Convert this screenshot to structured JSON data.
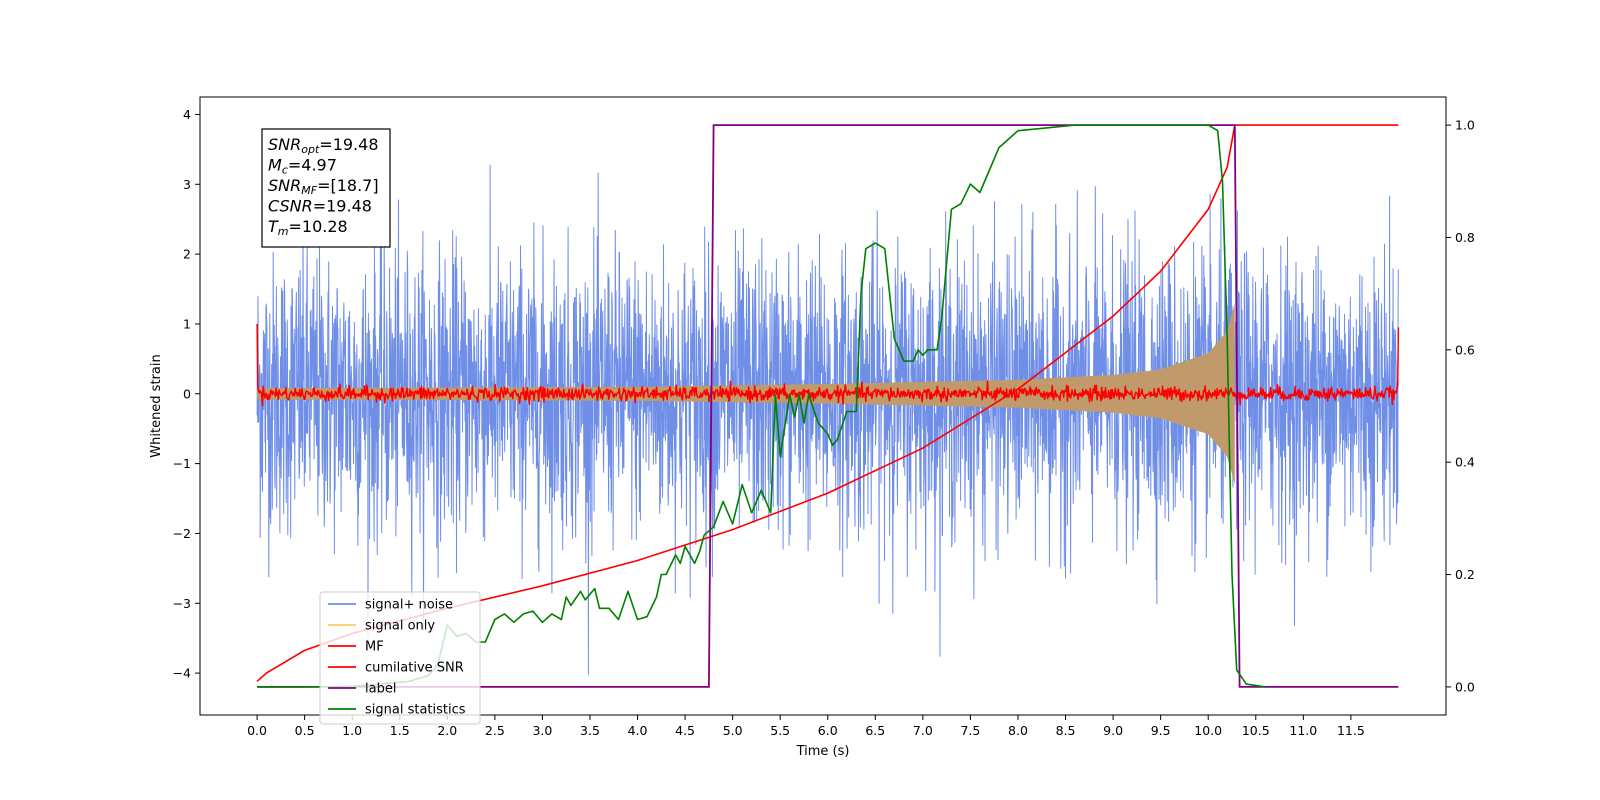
{
  "chart_data": {
    "type": "line",
    "xlabel": "Time (s)",
    "ylabel": "Whitened strain",
    "xlim": [
      -0.6,
      12.5
    ],
    "ylim": [
      -4.6,
      4.25
    ],
    "ylim_right": [
      -0.05,
      1.05
    ],
    "xticks": [
      0.0,
      0.5,
      1.0,
      1.5,
      2.0,
      2.5,
      3.0,
      3.5,
      4.0,
      4.5,
      5.0,
      5.5,
      6.0,
      6.5,
      7.0,
      7.5,
      8.0,
      8.5,
      9.0,
      9.5,
      10.0,
      10.5,
      11.0,
      11.5
    ],
    "yticks": [
      -4,
      -3,
      -2,
      -1,
      0,
      1,
      2,
      3,
      4
    ],
    "yticks_right": [
      0.0,
      0.2,
      0.4,
      0.6,
      0.8,
      1.0
    ],
    "grid": false,
    "legend_position": "lower-left",
    "colors": {
      "noise": "#6f8ee8",
      "signal_fill": "#c09a6a",
      "signal_only": "#ffcc66",
      "mf": "#ff0000",
      "cumulative": "#ff0000",
      "label": "#800080",
      "stats": "#008000"
    },
    "annotation": {
      "lines": [
        {
          "main": "SNR",
          "sub": "opt",
          "rest": "=19.48"
        },
        {
          "main": "M",
          "sub": "c",
          "rest": "=4.97"
        },
        {
          "main": "SNR",
          "sub": "MF",
          "rest": "=[18.7]"
        },
        {
          "main": "CSNR",
          "sub": "",
          "rest": "=19.48"
        },
        {
          "main": "T",
          "sub": "m",
          "rest": "=10.28"
        }
      ]
    },
    "series": [
      {
        "name": "signal+ noise",
        "key": "noise",
        "axis": "left",
        "sigma": 1.0,
        "x_range": [
          0.0,
          12.0
        ]
      },
      {
        "name": "signal only",
        "key": "signal_only",
        "axis": "left",
        "merger_time": 10.28,
        "envelope": [
          [
            0.0,
            0.08
          ],
          [
            2.0,
            0.09
          ],
          [
            4.0,
            0.1
          ],
          [
            6.0,
            0.14
          ],
          [
            8.0,
            0.2
          ],
          [
            9.0,
            0.27
          ],
          [
            9.5,
            0.35
          ],
          [
            10.0,
            0.58
          ],
          [
            10.2,
            0.9
          ],
          [
            10.28,
            1.3
          ],
          [
            10.29,
            0.0
          ],
          [
            12.0,
            0.0
          ]
        ]
      },
      {
        "name": "MF",
        "key": "mf",
        "axis": "left",
        "x_range": [
          0.0,
          12.0
        ],
        "noise_level": 0.05,
        "start_value": 1.0,
        "end_value": 0.95
      },
      {
        "name": "cumilative SNR",
        "key": "cumulative",
        "axis": "right",
        "points": [
          [
            0.0,
            0.01
          ],
          [
            0.1,
            0.025
          ],
          [
            0.5,
            0.065
          ],
          [
            1.0,
            0.095
          ],
          [
            2.0,
            0.14
          ],
          [
            3.0,
            0.18
          ],
          [
            4.0,
            0.225
          ],
          [
            5.0,
            0.28
          ],
          [
            6.0,
            0.345
          ],
          [
            7.0,
            0.425
          ],
          [
            8.0,
            0.53
          ],
          [
            9.0,
            0.66
          ],
          [
            9.5,
            0.74
          ],
          [
            10.0,
            0.85
          ],
          [
            10.2,
            0.925
          ],
          [
            10.28,
            1.0
          ],
          [
            12.0,
            1.0
          ]
        ]
      },
      {
        "name": "label",
        "key": "label",
        "axis": "right",
        "points": [
          [
            0.0,
            0.0
          ],
          [
            4.75,
            0.0
          ],
          [
            4.8,
            1.0
          ],
          [
            10.28,
            1.0
          ],
          [
            10.33,
            0.0
          ],
          [
            12.0,
            0.0
          ]
        ]
      },
      {
        "name": "signal statistics",
        "key": "stats",
        "axis": "right",
        "points": [
          [
            0.0,
            0.0
          ],
          [
            0.5,
            0.0
          ],
          [
            1.0,
            0.001
          ],
          [
            1.3,
            0.005
          ],
          [
            1.6,
            0.01
          ],
          [
            1.8,
            0.02
          ],
          [
            1.9,
            0.04
          ],
          [
            2.0,
            0.11
          ],
          [
            2.05,
            0.1
          ],
          [
            2.1,
            0.09
          ],
          [
            2.2,
            0.095
          ],
          [
            2.3,
            0.08
          ],
          [
            2.4,
            0.08
          ],
          [
            2.45,
            0.1
          ],
          [
            2.5,
            0.12
          ],
          [
            2.6,
            0.13
          ],
          [
            2.7,
            0.115
          ],
          [
            2.8,
            0.13
          ],
          [
            2.9,
            0.135
          ],
          [
            3.0,
            0.115
          ],
          [
            3.1,
            0.13
          ],
          [
            3.2,
            0.12
          ],
          [
            3.25,
            0.16
          ],
          [
            3.3,
            0.145
          ],
          [
            3.4,
            0.17
          ],
          [
            3.45,
            0.155
          ],
          [
            3.55,
            0.175
          ],
          [
            3.6,
            0.14
          ],
          [
            3.7,
            0.14
          ],
          [
            3.8,
            0.12
          ],
          [
            3.9,
            0.17
          ],
          [
            4.0,
            0.12
          ],
          [
            4.1,
            0.125
          ],
          [
            4.2,
            0.16
          ],
          [
            4.25,
            0.2
          ],
          [
            4.3,
            0.2
          ],
          [
            4.4,
            0.235
          ],
          [
            4.45,
            0.22
          ],
          [
            4.5,
            0.25
          ],
          [
            4.6,
            0.22
          ],
          [
            4.65,
            0.24
          ],
          [
            4.7,
            0.27
          ],
          [
            4.8,
            0.285
          ],
          [
            4.9,
            0.33
          ],
          [
            5.0,
            0.29
          ],
          [
            5.1,
            0.36
          ],
          [
            5.2,
            0.31
          ],
          [
            5.3,
            0.35
          ],
          [
            5.4,
            0.31
          ],
          [
            5.45,
            0.52
          ],
          [
            5.5,
            0.41
          ],
          [
            5.6,
            0.52
          ],
          [
            5.65,
            0.48
          ],
          [
            5.7,
            0.52
          ],
          [
            5.75,
            0.47
          ],
          [
            5.8,
            0.52
          ],
          [
            5.9,
            0.47
          ],
          [
            6.0,
            0.45
          ],
          [
            6.05,
            0.43
          ],
          [
            6.1,
            0.44
          ],
          [
            6.2,
            0.49
          ],
          [
            6.3,
            0.49
          ],
          [
            6.35,
            0.7
          ],
          [
            6.4,
            0.78
          ],
          [
            6.5,
            0.79
          ],
          [
            6.6,
            0.78
          ],
          [
            6.65,
            0.7
          ],
          [
            6.7,
            0.62
          ],
          [
            6.8,
            0.58
          ],
          [
            6.9,
            0.58
          ],
          [
            6.95,
            0.6
          ],
          [
            7.0,
            0.59
          ],
          [
            7.05,
            0.6
          ],
          [
            7.15,
            0.6
          ],
          [
            7.2,
            0.66
          ],
          [
            7.3,
            0.85
          ],
          [
            7.4,
            0.86
          ],
          [
            7.5,
            0.895
          ],
          [
            7.6,
            0.88
          ],
          [
            7.7,
            0.92
          ],
          [
            7.8,
            0.96
          ],
          [
            7.9,
            0.975
          ],
          [
            8.0,
            0.99
          ],
          [
            8.3,
            0.995
          ],
          [
            8.6,
            1.0
          ],
          [
            9.0,
            1.0
          ],
          [
            9.5,
            1.0
          ],
          [
            10.0,
            1.0
          ],
          [
            10.1,
            0.99
          ],
          [
            10.15,
            0.9
          ],
          [
            10.2,
            0.62
          ],
          [
            10.25,
            0.2
          ],
          [
            10.3,
            0.03
          ],
          [
            10.4,
            0.005
          ],
          [
            10.6,
            0.0
          ],
          [
            12.0,
            0.0
          ]
        ]
      }
    ]
  }
}
